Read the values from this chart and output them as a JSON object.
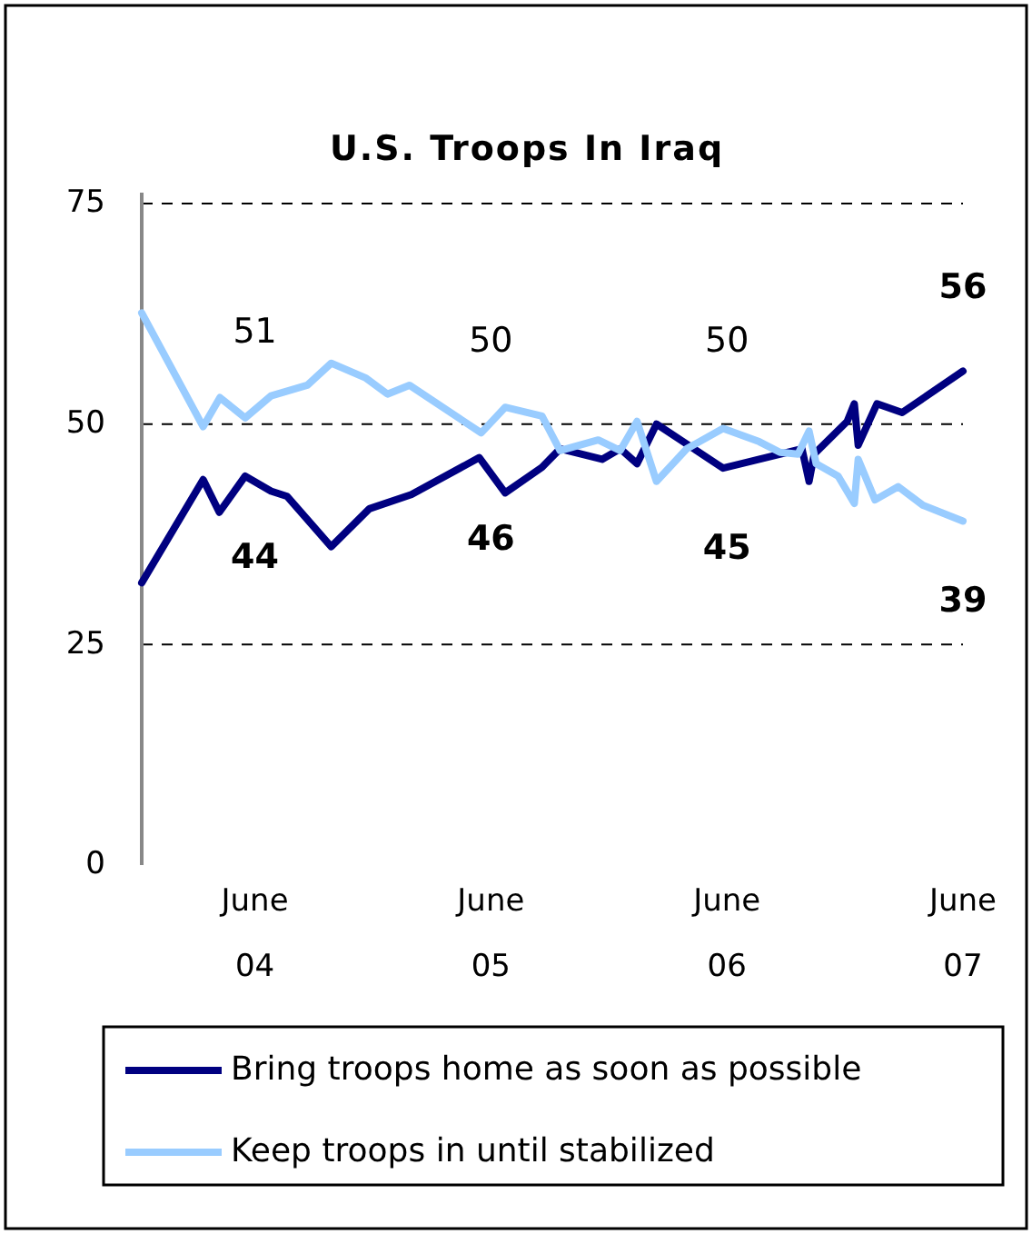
{
  "chart_data": {
    "type": "line",
    "title": "U.S. Troops In Iraq",
    "series": [
      {
        "name": "Bring troops home as soon as possible",
        "color": "#000080",
        "x": [
          "2003-12-09",
          "2004-03-13",
          "2004-04-07",
          "2004-05-17",
          "2004-06-26",
          "2004-07-21",
          "2004-09-27",
          "2004-11-25",
          "2005-01-29",
          "2005-05-14",
          "2005-06-23",
          "2005-08-19",
          "2005-09-16",
          "2005-11-20",
          "2005-12-18",
          "2006-01-13",
          "2006-02-12",
          "2006-05-26",
          "2006-09-25",
          "2006-10-06",
          "2006-10-14",
          "2006-12-04",
          "2006-12-15",
          "2006-12-21",
          "2007-01-19",
          "2007-02-27",
          "2007-06-01"
        ],
        "values": [
          32,
          43.7,
          40,
          44.1,
          42.4,
          41.8,
          36.1,
          40.4,
          42,
          46.2,
          42.2,
          45.1,
          47.2,
          46,
          47.2,
          45.5,
          50,
          45,
          47.2,
          43.5,
          46.6,
          50.3,
          52.3,
          47.6,
          52.3,
          51.3,
          56
        ]
      },
      {
        "name": "Keep troops in until stabilized",
        "color": "#99ccff",
        "x": [
          "2003-12-09",
          "2004-03-13",
          "2004-04-08",
          "2004-05-17",
          "2004-06-26",
          "2004-08-21",
          "2004-09-27",
          "2004-11-20",
          "2004-12-23",
          "2005-01-26",
          "2005-05-17",
          "2005-06-23",
          "2005-08-19",
          "2005-09-16",
          "2005-11-14",
          "2005-12-18",
          "2006-01-13",
          "2006-02-12",
          "2006-03-31",
          "2006-05-26",
          "2006-07-21",
          "2006-08-22",
          "2006-09-19",
          "2006-10-06",
          "2006-10-17",
          "2006-11-20",
          "2006-12-15",
          "2006-12-21",
          "2007-01-16",
          "2007-02-21",
          "2007-03-31",
          "2007-06-01"
        ],
        "values": [
          62.6,
          49.7,
          53,
          50.7,
          53.2,
          54.4,
          56.9,
          55.2,
          53.4,
          54.4,
          49,
          51.9,
          50.9,
          47,
          48.2,
          47,
          50.3,
          43.5,
          47.2,
          49.5,
          48,
          46.8,
          46.6,
          49.2,
          45.5,
          44.1,
          41,
          46,
          41.4,
          42.9,
          40.8,
          39
        ]
      }
    ],
    "xlim": [
      "2003-12-09",
      "2007-06-01"
    ],
    "xticks": [
      {
        "value": "2004-06-01",
        "label": "June\n04"
      },
      {
        "value": "2005-06-01",
        "label": "June\n05"
      },
      {
        "value": "2006-06-01",
        "label": "June\n06"
      },
      {
        "value": "2007-06-01",
        "label": "June\n07"
      }
    ],
    "ylim": [
      0,
      75
    ],
    "yticks": [
      0,
      25,
      50,
      75
    ],
    "grid": "y",
    "legend": "bottom",
    "line_style": "solid",
    "marker": "none",
    "annotations": [
      {
        "text": "51",
        "x": "2004-06-01",
        "y": 51
      },
      {
        "text": "44",
        "x": "2004-06-01",
        "y": 44
      },
      {
        "text": "50",
        "x": "2005-06-01",
        "y": 50
      },
      {
        "text": "46",
        "x": "2005-06-01",
        "y": 46
      },
      {
        "text": "50",
        "x": "2006-06-01",
        "y": 50
      },
      {
        "text": "45",
        "x": "2006-06-01",
        "y": 45
      },
      {
        "text": "56",
        "x": "2007-06-01",
        "y": 56
      },
      {
        "text": "39",
        "x": "2007-06-01",
        "y": 39
      }
    ]
  }
}
